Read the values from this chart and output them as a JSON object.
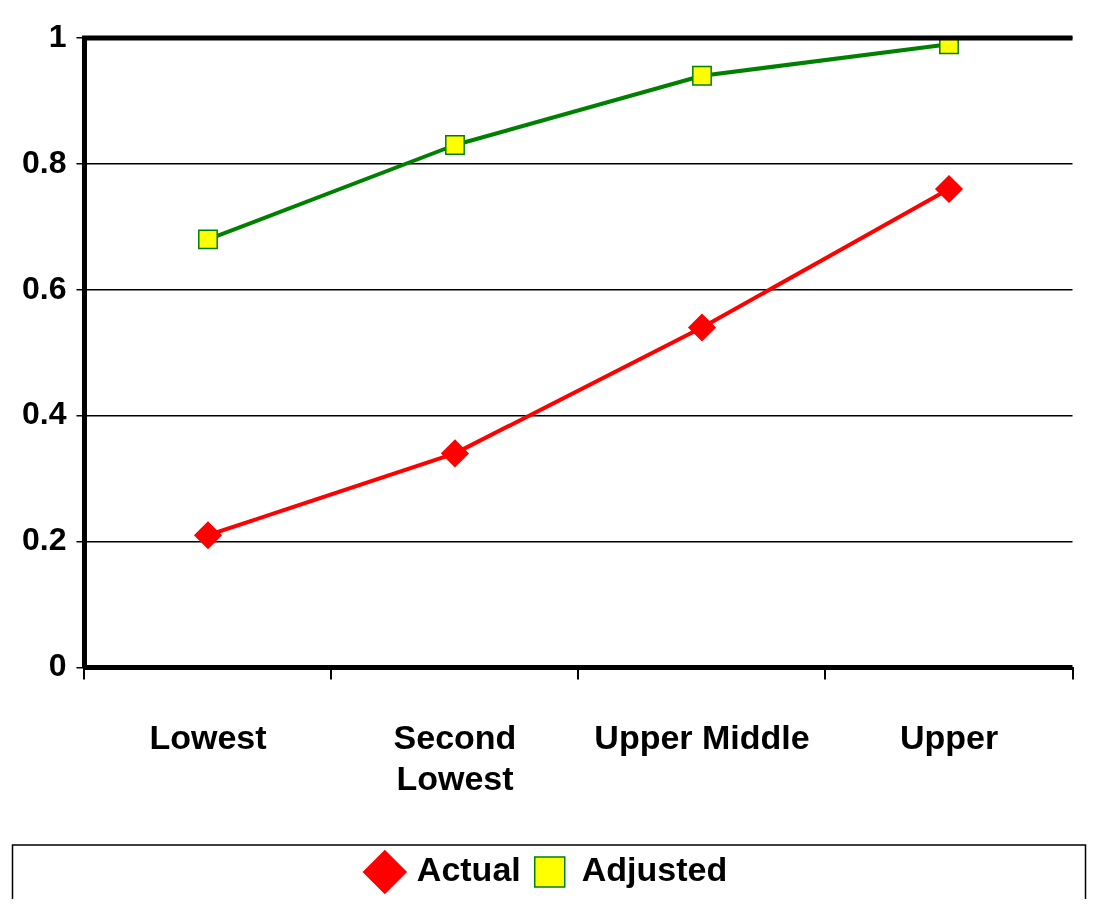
{
  "chart_data": {
    "type": "line",
    "categories": [
      "Lowest",
      "Second\nLowest",
      "Upper Middle",
      "Upper"
    ],
    "series": [
      {
        "name": "Actual",
        "color": "#ff0000",
        "marker": "diamond",
        "values": [
          0.21,
          0.34,
          0.54,
          0.76
        ]
      },
      {
        "name": "Adjusted",
        "color": "#008000",
        "marker": "square",
        "values": [
          0.68,
          0.83,
          0.94,
          0.99
        ]
      }
    ],
    "ylim": [
      0,
      1
    ],
    "yticks": [
      0,
      0.2,
      0.4,
      0.6,
      0.8,
      1
    ],
    "grid": "y",
    "legend": "bottom"
  }
}
